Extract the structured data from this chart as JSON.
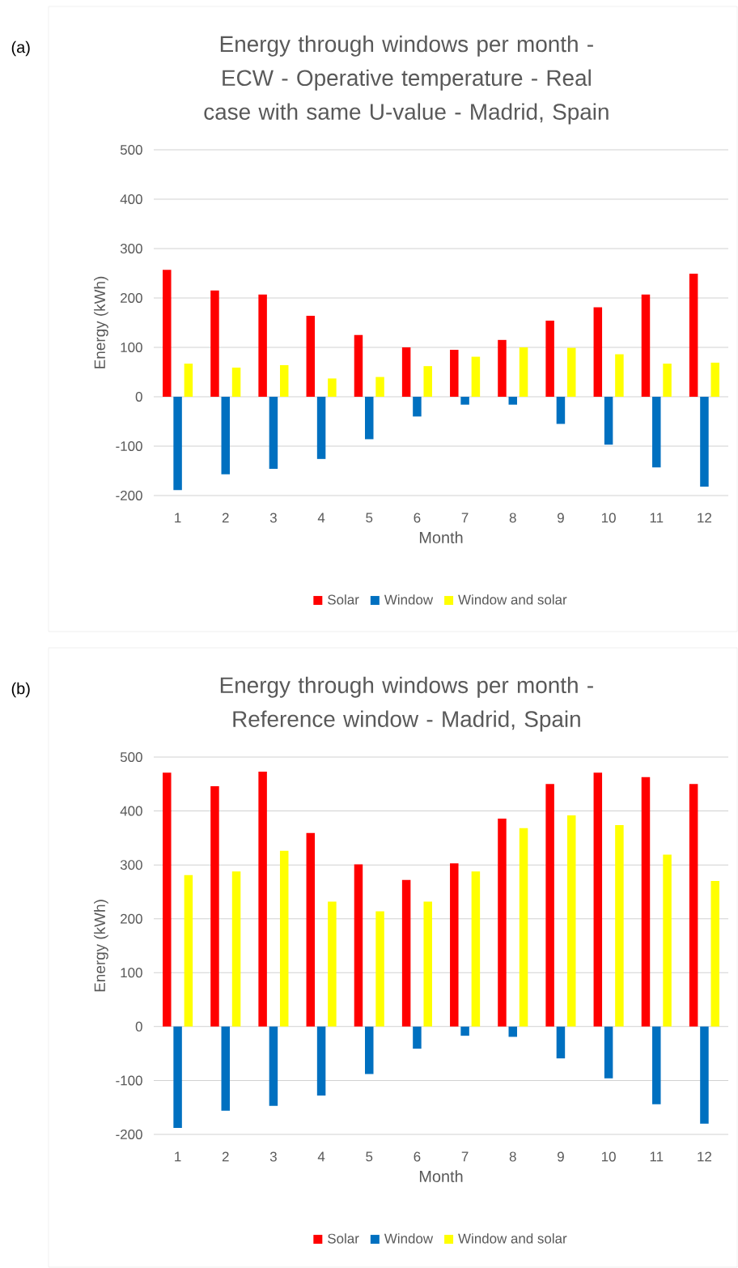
{
  "chart_data": [
    {
      "type": "bar",
      "title": "Energy through windows per month - ECW - Operative temperature - Real case with same U-value - Madrid, Spain",
      "xlabel": "Month",
      "ylabel": "Energy (kWh)",
      "annotations": [
        "(a)"
      ],
      "categories": [
        "1",
        "2",
        "3",
        "4",
        "5",
        "6",
        "7",
        "8",
        "9",
        "10",
        "11",
        "12"
      ],
      "series": [
        {
          "name": "Solar",
          "color": "#ff0000",
          "values": [
            257,
            215,
            207,
            164,
            125,
            100,
            95,
            115,
            154,
            181,
            207,
            249
          ]
        },
        {
          "name": "Window",
          "color": "#0070c0",
          "values": [
            -189,
            -157,
            -146,
            -126,
            -86,
            -40,
            -16,
            -16,
            -55,
            -97,
            -143,
            -182
          ]
        },
        {
          "name": "Window and solar",
          "color": "#ffff00",
          "values": [
            67,
            59,
            64,
            37,
            40,
            62,
            81,
            100,
            99,
            86,
            67,
            69
          ]
        }
      ],
      "ylim": [
        -200,
        500
      ],
      "yticks": [
        -200,
        -100,
        0,
        100,
        200,
        300,
        400,
        500
      ],
      "grid": "y",
      "legend": "bottom"
    },
    {
      "type": "bar",
      "title": "Energy through windows per month - Reference window - Madrid, Spain",
      "xlabel": "Month",
      "ylabel": "Energy (kWh)",
      "annotations": [
        "(b)"
      ],
      "categories": [
        "1",
        "2",
        "3",
        "4",
        "5",
        "6",
        "7",
        "8",
        "9",
        "10",
        "11",
        "12"
      ],
      "series": [
        {
          "name": "Solar",
          "color": "#ff0000",
          "values": [
            471,
            446,
            473,
            359,
            301,
            272,
            303,
            386,
            450,
            471,
            463,
            450
          ]
        },
        {
          "name": "Window",
          "color": "#0070c0",
          "values": [
            -188,
            -156,
            -147,
            -128,
            -88,
            -41,
            -17,
            -19,
            -59,
            -96,
            -144,
            -180
          ]
        },
        {
          "name": "Window and solar",
          "color": "#ffff00",
          "values": [
            281,
            288,
            326,
            232,
            214,
            232,
            288,
            368,
            392,
            374,
            319,
            270
          ]
        }
      ],
      "ylim": [
        -200,
        500
      ],
      "yticks": [
        -200,
        -100,
        0,
        100,
        200,
        300,
        400,
        500
      ],
      "grid": "y",
      "legend": "bottom"
    }
  ]
}
